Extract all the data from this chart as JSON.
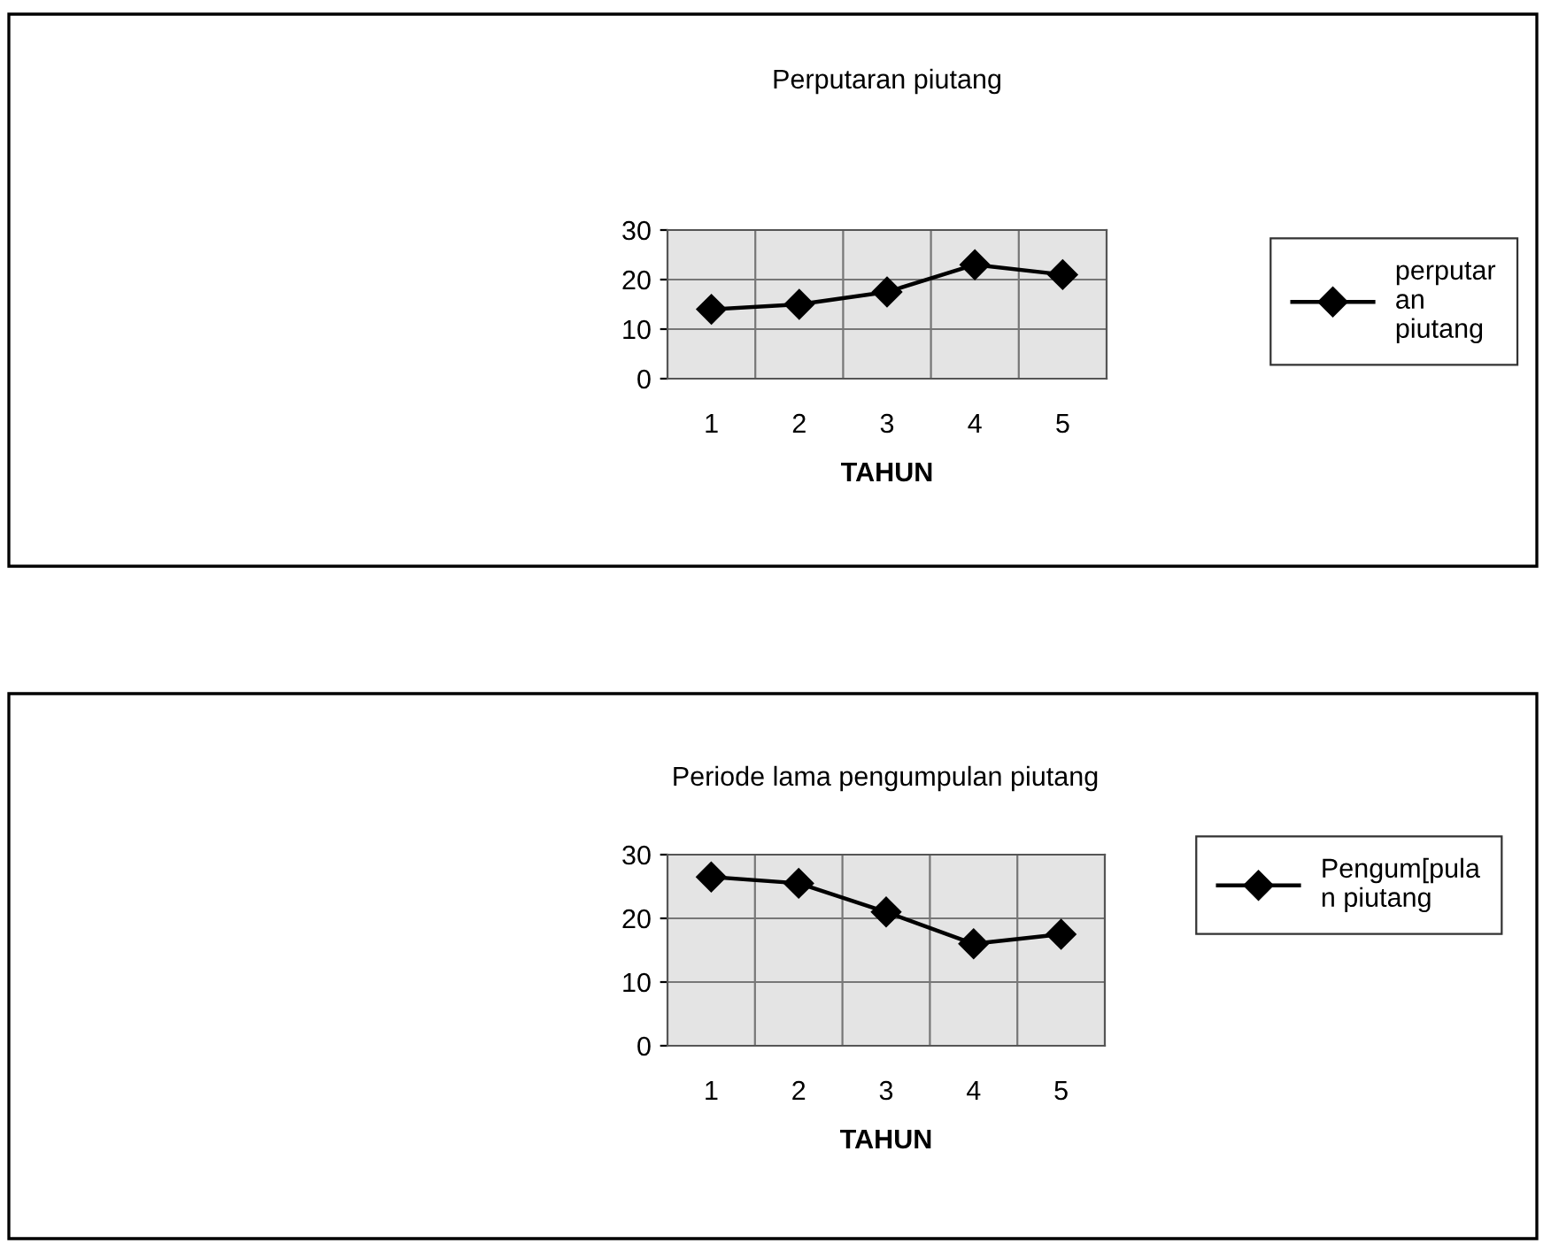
{
  "chart_data": [
    {
      "type": "line",
      "title": "Perputaran piutang",
      "xlabel": "TAHUN",
      "categories": [
        "1",
        "2",
        "3",
        "4",
        "5"
      ],
      "series": [
        {
          "name": "perputar\nan\npiutang",
          "color": "#000000",
          "values": [
            14,
            15,
            17.5,
            23,
            21
          ]
        }
      ],
      "ylim": [
        0,
        30
      ],
      "yticks": [
        0,
        10,
        20,
        30
      ],
      "grid": true,
      "legend": "right",
      "marker": "diamond",
      "line_style": "solid"
    },
    {
      "type": "line",
      "title": "Periode lama pengumpulan piutang",
      "xlabel": "TAHUN",
      "categories": [
        "1",
        "2",
        "3",
        "4",
        "5"
      ],
      "series": [
        {
          "name": "Pengum[pula\nn piutang",
          "color": "#000000",
          "values": [
            26.5,
            25.5,
            21,
            16,
            17.5
          ]
        }
      ],
      "ylim": [
        0,
        30
      ],
      "yticks": [
        0,
        10,
        20,
        30
      ],
      "grid": true,
      "legend": "right",
      "marker": "diamond",
      "line_style": "solid"
    }
  ]
}
